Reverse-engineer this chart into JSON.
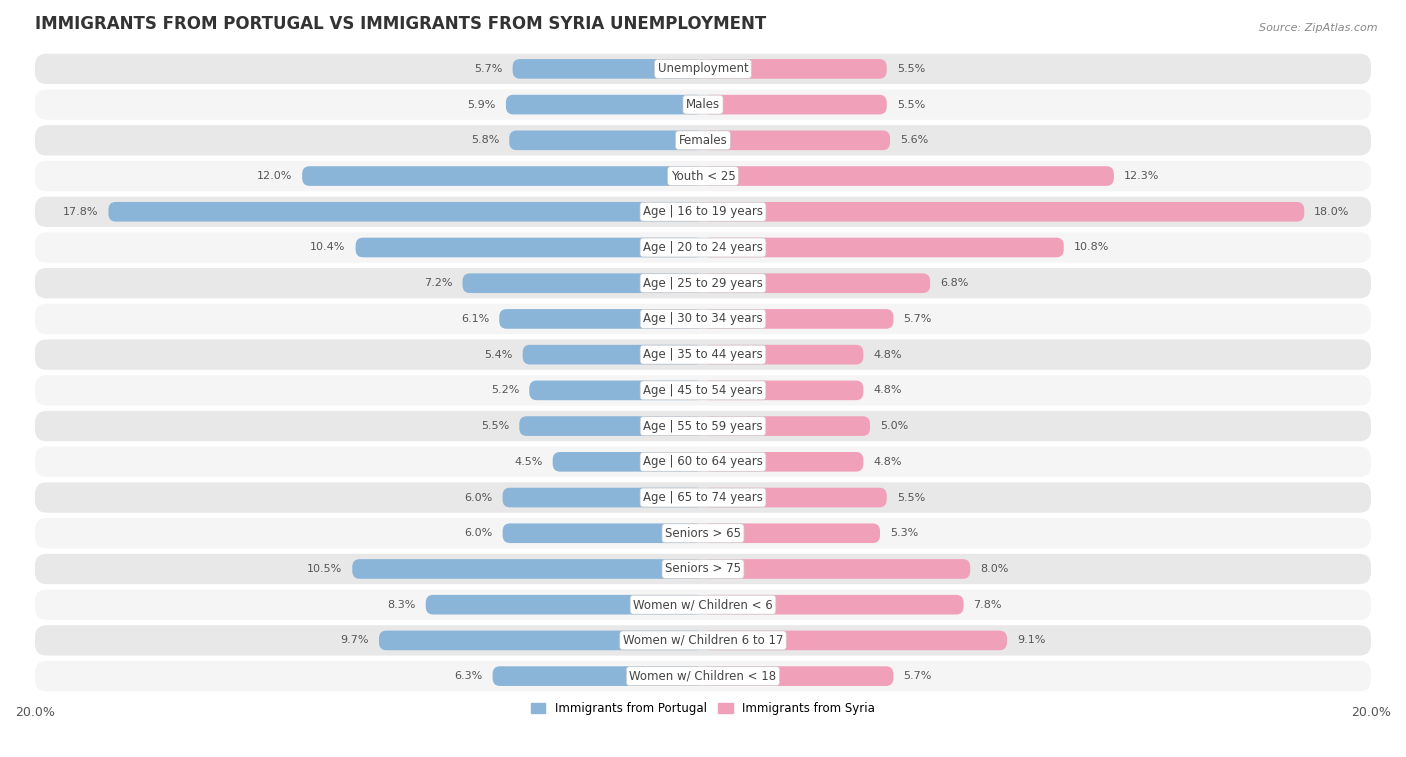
{
  "title": "IMMIGRANTS FROM PORTUGAL VS IMMIGRANTS FROM SYRIA UNEMPLOYMENT",
  "source": "Source: ZipAtlas.com",
  "categories": [
    "Unemployment",
    "Males",
    "Females",
    "Youth < 25",
    "Age | 16 to 19 years",
    "Age | 20 to 24 years",
    "Age | 25 to 29 years",
    "Age | 30 to 34 years",
    "Age | 35 to 44 years",
    "Age | 45 to 54 years",
    "Age | 55 to 59 years",
    "Age | 60 to 64 years",
    "Age | 65 to 74 years",
    "Seniors > 65",
    "Seniors > 75",
    "Women w/ Children < 6",
    "Women w/ Children 6 to 17",
    "Women w/ Children < 18"
  ],
  "portugal_values": [
    5.7,
    5.9,
    5.8,
    12.0,
    17.8,
    10.4,
    7.2,
    6.1,
    5.4,
    5.2,
    5.5,
    4.5,
    6.0,
    6.0,
    10.5,
    8.3,
    9.7,
    6.3
  ],
  "syria_values": [
    5.5,
    5.5,
    5.6,
    12.3,
    18.0,
    10.8,
    6.8,
    5.7,
    4.8,
    4.8,
    5.0,
    4.8,
    5.5,
    5.3,
    8.0,
    7.8,
    9.1,
    5.7
  ],
  "portugal_color": "#8ab4d8",
  "syria_color": "#f0a0b8",
  "xlim": 20.0,
  "legend_portugal": "Immigrants from Portugal",
  "legend_syria": "Immigrants from Syria",
  "row_color_odd": "#e8e8e8",
  "row_color_even": "#f5f5f5",
  "bar_background": "#ffffff",
  "bar_height": 0.55,
  "title_fontsize": 12,
  "label_fontsize": 8.5,
  "axis_fontsize": 9,
  "value_fontsize": 8
}
